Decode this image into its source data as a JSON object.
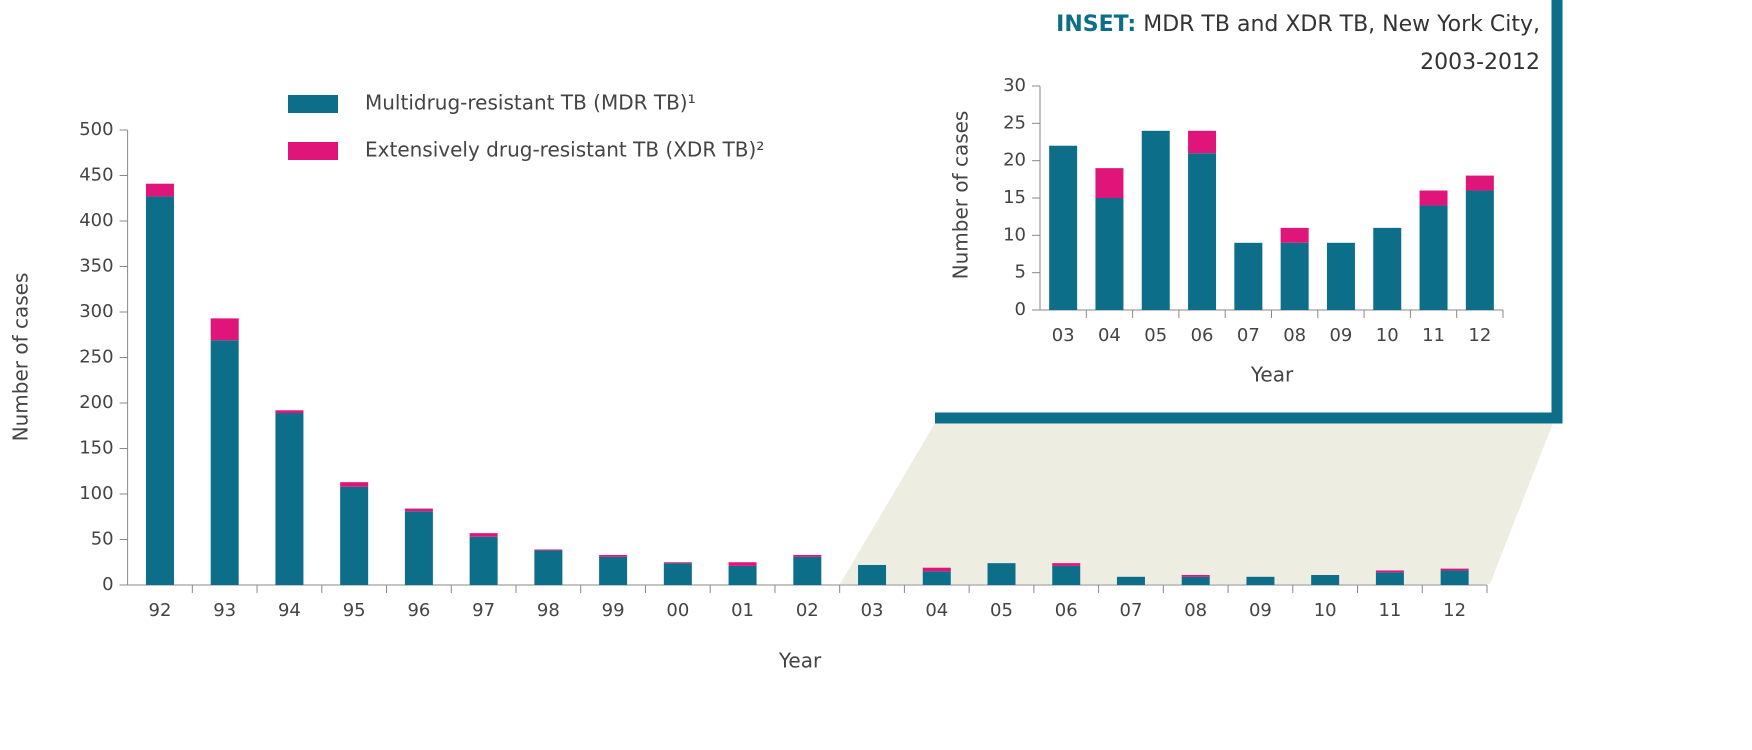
{
  "chart_data": [
    {
      "type": "stacked_bar",
      "x_label": "Year",
      "y_label": "Number of cases",
      "categories": [
        "92",
        "93",
        "94",
        "95",
        "96",
        "97",
        "98",
        "99",
        "00",
        "01",
        "02",
        "03",
        "04",
        "05",
        "06",
        "07",
        "08",
        "09",
        "10",
        "11",
        "12"
      ],
      "series": [
        {
          "name": "Multidrug-resistant TB (MDR TB)¹",
          "color": "#0d6e8a",
          "values": [
            427,
            269,
            189,
            108,
            81,
            53,
            38,
            31,
            24,
            21,
            31,
            22,
            15,
            24,
            21,
            9,
            9,
            9,
            11,
            14,
            16
          ]
        },
        {
          "name": "Extensively drug-resistant TB (XDR TB)²",
          "color": "#e0157a",
          "values": [
            14,
            24,
            3,
            5,
            3,
            4,
            1,
            2,
            1,
            4,
            2,
            0,
            4,
            0,
            3,
            0,
            2,
            0,
            0,
            2,
            2
          ]
        }
      ],
      "ylim": [
        0,
        500
      ],
      "yticks": [
        0,
        50,
        100,
        150,
        200,
        250,
        300,
        350,
        400,
        450,
        500
      ]
    },
    {
      "type": "stacked_bar",
      "title_label": "INSET:",
      "title": "MDR TB and XDR TB, New York City, 2003-2012",
      "x_label": "Year",
      "y_label": "Number of cases",
      "categories": [
        "03",
        "04",
        "05",
        "06",
        "07",
        "08",
        "09",
        "10",
        "11",
        "12"
      ],
      "series": [
        {
          "name": "MDR TB",
          "color": "#0d6e8a",
          "values": [
            22,
            15,
            24,
            21,
            9,
            9,
            9,
            11,
            14,
            16
          ]
        },
        {
          "name": "XDR TB",
          "color": "#e0157a",
          "values": [
            0,
            4,
            0,
            3,
            0,
            2,
            0,
            0,
            2,
            2
          ]
        }
      ],
      "ylim": [
        0,
        30
      ],
      "yticks": [
        0,
        5,
        10,
        15,
        20,
        25,
        30
      ]
    }
  ]
}
